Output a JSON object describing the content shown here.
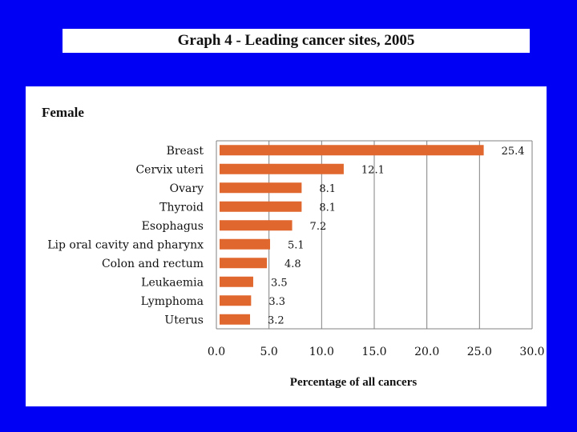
{
  "header": {
    "title": "Graph 4 - Leading cancer sites, 2005"
  },
  "chart_data": {
    "type": "bar",
    "orientation": "horizontal",
    "panel_title": "Female",
    "categories": [
      "Breast",
      "Cervix uteri",
      "Ovary",
      "Thyroid",
      "Esophagus",
      "Lip oral cavity and pharynx",
      "Colon and rectum",
      "Leukaemia",
      "Lymphoma",
      "Uterus"
    ],
    "values": [
      25.4,
      12.1,
      8.1,
      8.1,
      7.2,
      5.1,
      4.8,
      3.5,
      3.3,
      3.2
    ],
    "value_labels": [
      "25.4",
      "12.1",
      "8.1",
      "8.1",
      "7.2",
      "5.1",
      "4.8",
      "3.5",
      "3.3",
      "3.2"
    ],
    "xlabel": "Percentage of all cancers",
    "xlim": [
      0,
      30
    ],
    "xticks": [
      0,
      5,
      10,
      15,
      20,
      25,
      30
    ],
    "xtick_labels": [
      "0.0",
      "5.0",
      "10.0",
      "15.0",
      "20.0",
      "25.0",
      "30.0"
    ],
    "grid": "vertical",
    "bar_color": "#e0672d",
    "grid_color": "#808080"
  }
}
